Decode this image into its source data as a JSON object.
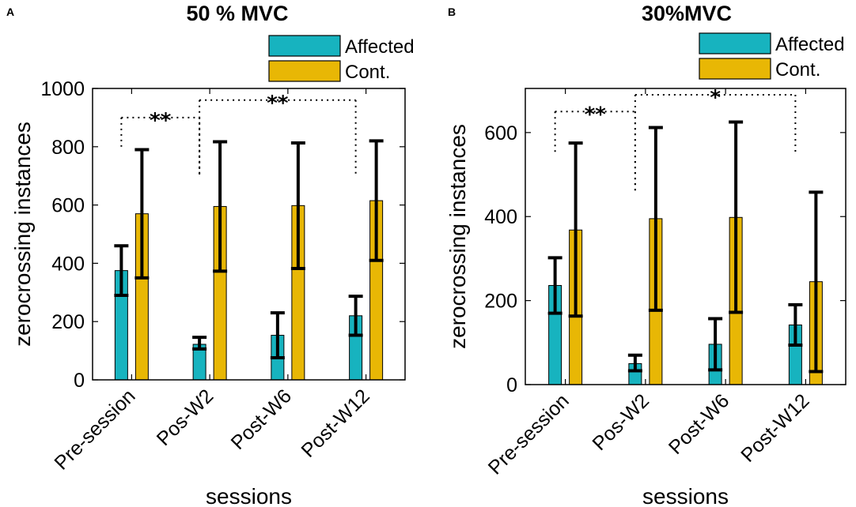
{
  "chart_data": [
    {
      "panel": "A",
      "type": "bar",
      "title": "50 % MVC",
      "xlabel": "sessions",
      "ylabel": "zerocrossing instances",
      "ylim": [
        0,
        1000
      ],
      "yticks": [
        0,
        200,
        400,
        600,
        800,
        1000
      ],
      "categories": [
        "Pre-session",
        "Pos-W2",
        "Post-W6",
        "Post-W12"
      ],
      "series": [
        {
          "name": "Affected",
          "color": "#17b3bf",
          "values": [
            375,
            122,
            153,
            220
          ],
          "err_low": [
            290,
            106,
            76,
            153
          ],
          "err_high": [
            460,
            146,
            230,
            287
          ]
        },
        {
          "name": "Cont.",
          "color": "#e8b705",
          "values": [
            570,
            595,
            598,
            615
          ],
          "err_low": [
            350,
            373,
            382,
            410
          ],
          "err_high": [
            790,
            817,
            813,
            820
          ]
        }
      ],
      "significance": [
        {
          "label": "**",
          "from": 0,
          "to": 1,
          "y": 900,
          "left_drop": 800,
          "right_drop": 700
        },
        {
          "label": "**",
          "from": 1,
          "to": 3,
          "y": 960,
          "left_drop": 700,
          "right_drop": 700
        }
      ]
    },
    {
      "panel": "B",
      "type": "bar",
      "title": "30%MVC",
      "xlabel": "sessions",
      "ylabel": "zerocrossing instances",
      "ylim": [
        0,
        705
      ],
      "yticks": [
        0,
        200,
        400,
        600
      ],
      "categories": [
        "Pre-session",
        "Pos-W2",
        "Post-W6",
        "Post-W12"
      ],
      "series": [
        {
          "name": "Affected",
          "color": "#17b3bf",
          "values": [
            236,
            50,
            96,
            142
          ],
          "err_low": [
            170,
            33,
            35,
            94
          ],
          "err_high": [
            302,
            70,
            157,
            190
          ]
        },
        {
          "name": "Cont.",
          "color": "#e8b705",
          "values": [
            368,
            395,
            398,
            245
          ],
          "err_low": [
            163,
            177,
            172,
            31
          ],
          "err_high": [
            575,
            612,
            625,
            458
          ]
        }
      ],
      "significance": [
        {
          "label": "**",
          "from": 0,
          "to": 1,
          "y": 650,
          "left_drop": 550,
          "right_drop": 455
        },
        {
          "label": "*",
          "from": 1,
          "to": 3,
          "y": 690,
          "left_drop": 455,
          "right_drop": 550
        }
      ]
    }
  ]
}
